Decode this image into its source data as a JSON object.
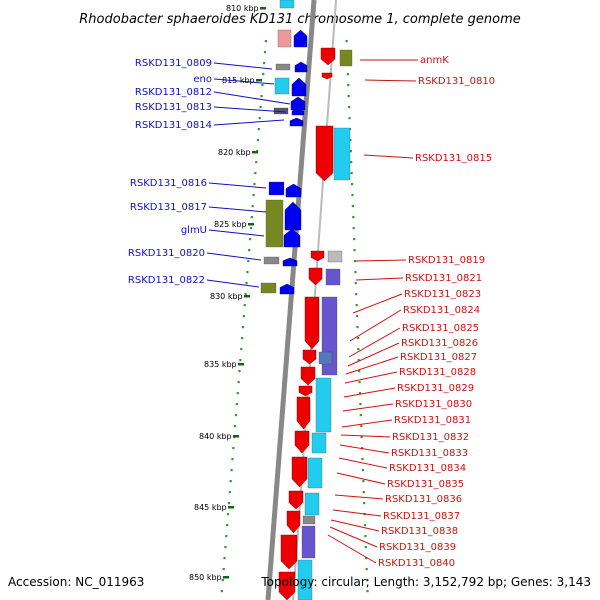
{
  "title": "Rhodobacter sphaeroides KD131 chromosome 1, complete genome",
  "footer": {
    "accession": "Accession: NC_011963",
    "topology": "Topology: circular; Length: 3,152,792 bp; Genes: 3,143"
  },
  "scale_labels": [
    "810 kbp",
    "815 kbp",
    "820 kbp",
    "825 kbp",
    "830 kbp",
    "835 kbp",
    "840 kbp",
    "845 kbp",
    "850 kbp"
  ],
  "left_labels": [
    "RSKD131_0809",
    "eno",
    "RSKD131_0812",
    "RSKD131_0813",
    "RSKD131_0814",
    "RSKD131_0816",
    "RSKD131_0817",
    "glmU",
    "RSKD131_0820",
    "RSKD131_0822"
  ],
  "right_labels": [
    "anmK",
    "RSKD131_0810",
    "RSKD131_0815",
    "RSKD131_0819",
    "RSKD131_0821",
    "RSKD131_0823",
    "RSKD131_0824",
    "RSKD131_0825",
    "RSKD131_0826",
    "RSKD131_0827",
    "RSKD131_0828",
    "RSKD131_0829",
    "RSKD131_0830",
    "RSKD131_0831",
    "RSKD131_0832",
    "RSKD131_0833",
    "RSKD131_0834",
    "RSKD131_0835",
    "RSKD131_0836",
    "RSKD131_0837",
    "RSKD131_0838",
    "RSKD131_0839",
    "RSKD131_0840"
  ],
  "colors": {
    "forward_strand_label": "#1010c8",
    "reverse_strand_label": "#d01010",
    "gene_red": "#ee0000",
    "gene_blue": "#0000ee",
    "gene_cyan": "#22ccee",
    "gene_purple": "#6655cc",
    "gene_olive": "#778822",
    "gene_pink": "#ee9999",
    "gene_gray": "#888888",
    "backbone": "#888888",
    "dots": "#339933"
  }
}
